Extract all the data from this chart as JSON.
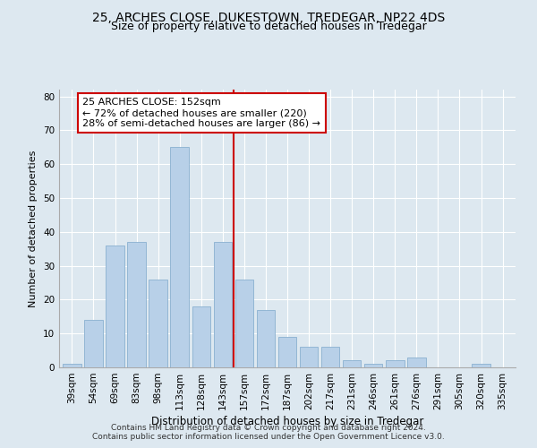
{
  "title1": "25, ARCHES CLOSE, DUKESTOWN, TREDEGAR, NP22 4DS",
  "title2": "Size of property relative to detached houses in Tredegar",
  "xlabel": "Distribution of detached houses by size in Tredegar",
  "ylabel": "Number of detached properties",
  "categories": [
    "39sqm",
    "54sqm",
    "69sqm",
    "83sqm",
    "98sqm",
    "113sqm",
    "128sqm",
    "143sqm",
    "157sqm",
    "172sqm",
    "187sqm",
    "202sqm",
    "217sqm",
    "231sqm",
    "246sqm",
    "261sqm",
    "276sqm",
    "291sqm",
    "305sqm",
    "320sqm",
    "335sqm"
  ],
  "values": [
    1,
    14,
    36,
    37,
    26,
    65,
    18,
    37,
    26,
    17,
    9,
    6,
    6,
    2,
    1,
    2,
    3,
    0,
    0,
    1,
    0
  ],
  "bar_color": "#b8d0e8",
  "bar_edge_color": "#8ab0d0",
  "vline_color": "#cc0000",
  "annotation_text": "25 ARCHES CLOSE: 152sqm\n← 72% of detached houses are smaller (220)\n28% of semi-detached houses are larger (86) →",
  "annotation_box_facecolor": "#ffffff",
  "annotation_box_edgecolor": "#cc0000",
  "ylim": [
    0,
    82
  ],
  "yticks": [
    0,
    10,
    20,
    30,
    40,
    50,
    60,
    70,
    80
  ],
  "footer1": "Contains HM Land Registry data © Crown copyright and database right 2024.",
  "footer2": "Contains public sector information licensed under the Open Government Licence v3.0.",
  "background_color": "#dde8f0",
  "plot_bg_color": "#dde8f0",
  "title1_fontsize": 10,
  "title2_fontsize": 9,
  "xlabel_fontsize": 8.5,
  "ylabel_fontsize": 8,
  "tick_fontsize": 7.5,
  "annot_fontsize": 8,
  "footer_fontsize": 6.5,
  "grid_color": "#ffffff"
}
